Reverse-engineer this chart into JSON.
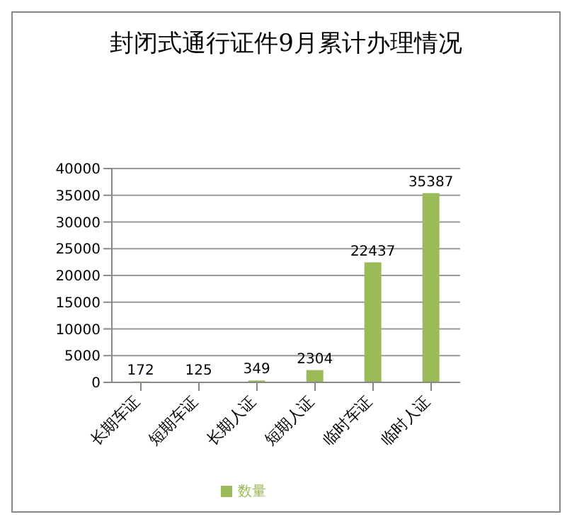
{
  "chart_data": {
    "type": "bar",
    "title": "封闭式通行证件9月累计办理情况",
    "categories": [
      "长期车证",
      "短期车证",
      "长期人证",
      "短期人证",
      "临时车证",
      "临时人证"
    ],
    "series": [
      {
        "name": "数量",
        "color": "#9bbb59",
        "values": [
          172,
          125,
          349,
          2304,
          22437,
          35387
        ]
      }
    ],
    "ylim": [
      0,
      40000
    ],
    "yticks": [
      0,
      5000,
      10000,
      15000,
      20000,
      25000,
      30000,
      35000,
      40000
    ],
    "grid": "y",
    "legend": "bottom",
    "data_labels": true
  }
}
